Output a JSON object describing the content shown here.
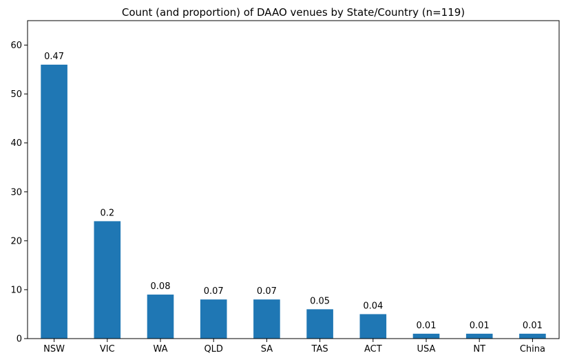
{
  "chart_data": {
    "type": "bar",
    "title": "Count (and proportion) of DAAO venues by State/Country (n=119)",
    "xlabel": "",
    "ylabel": "",
    "categories": [
      "NSW",
      "VIC",
      "WA",
      "QLD",
      "SA",
      "TAS",
      "ACT",
      "USA",
      "NT",
      "China"
    ],
    "values": [
      56,
      24,
      9,
      8,
      8,
      6,
      5,
      1,
      1,
      1
    ],
    "data_labels": [
      "0.47",
      "0.2",
      "0.08",
      "0.07",
      "0.07",
      "0.05",
      "0.04",
      "0.01",
      "0.01",
      "0.01"
    ],
    "ylim": [
      0,
      65
    ],
    "yticks": [
      0,
      10,
      20,
      30,
      40,
      50,
      60
    ],
    "grid": false,
    "legend": "none",
    "bar_color": "#1f77b4"
  }
}
